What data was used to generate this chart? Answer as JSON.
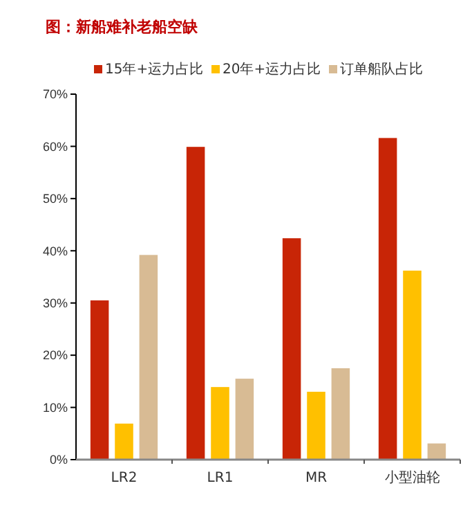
{
  "chart_data": {
    "type": "bar",
    "title": "图：新船难补老船空缺",
    "categories": [
      "LR2",
      "LR1",
      "MR",
      "小型油轮"
    ],
    "series": [
      {
        "name": "15年+运力占比",
        "color": "#c82506",
        "values": [
          30.5,
          59.9,
          42.4,
          61.6
        ]
      },
      {
        "name": "20年+运力占比",
        "color": "#ffc000",
        "values": [
          6.9,
          13.9,
          13.0,
          36.2
        ]
      },
      {
        "name": "订单船队占比",
        "color": "#d8bb94",
        "values": [
          39.2,
          15.5,
          17.5,
          3.1
        ]
      }
    ],
    "ylim": [
      0,
      70
    ],
    "yticks": [
      {
        "value": 0,
        "label": "0%"
      },
      {
        "value": 10,
        "label": "10%"
      },
      {
        "value": 20,
        "label": "20%"
      },
      {
        "value": 30,
        "label": "30%"
      },
      {
        "value": 40,
        "label": "40%"
      },
      {
        "value": 50,
        "label": "50%"
      },
      {
        "value": 60,
        "label": "60%"
      },
      {
        "value": 70,
        "label": "70%"
      }
    ],
    "grid": false,
    "legend": "top"
  }
}
